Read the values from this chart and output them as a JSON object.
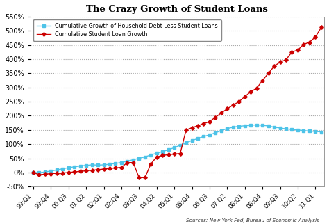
{
  "title": "The Crazy Growth of Student Loans",
  "source_text": "Sources: New York Fed, Bureau of Economic Analysis",
  "x_labels": [
    "99:Q1",
    "99:Q4",
    "00:Q3",
    "01:Q2",
    "02:Q1",
    "02:Q4",
    "03:Q3",
    "04:Q2",
    "05:Q1",
    "05:Q4",
    "06:Q3",
    "07:Q2",
    "08:Q1",
    "08:Q4",
    "09:Q3",
    "10:Q2",
    "11:Q1"
  ],
  "bg_color": "#ffffff",
  "plot_bg": "#ffffff",
  "line_color_household": "#4dc3e8",
  "line_color_student": "#cc0000",
  "ylim": [
    -50,
    550
  ],
  "yticks": [
    -50,
    0,
    50,
    100,
    150,
    200,
    250,
    300,
    350,
    400,
    450,
    500,
    550
  ],
  "legend_household": "Cumulative Growth of Household Debt Less Student Loans",
  "legend_student": "Cumulative Student Loan Growth",
  "hh": [
    0,
    -1,
    2,
    5,
    9,
    13,
    17,
    20,
    23,
    25,
    27,
    26,
    27,
    29,
    32,
    35,
    40,
    45,
    50,
    55,
    62,
    68,
    74,
    80,
    88,
    96,
    105,
    113,
    120,
    127,
    133,
    140,
    148,
    155,
    160,
    163,
    165,
    167,
    168,
    167,
    164,
    160,
    157,
    154,
    152,
    150,
    148,
    146,
    145,
    143
  ],
  "sl": [
    0,
    -8,
    -6,
    -4,
    -3,
    -2,
    0,
    2,
    4,
    6,
    8,
    10,
    12,
    14,
    16,
    18,
    35,
    35,
    -18,
    -18,
    30,
    55,
    60,
    63,
    65,
    67,
    150,
    158,
    165,
    172,
    180,
    195,
    210,
    225,
    238,
    250,
    268,
    285,
    297,
    325,
    350,
    375,
    390,
    398,
    425,
    432,
    452,
    460,
    478,
    512
  ]
}
